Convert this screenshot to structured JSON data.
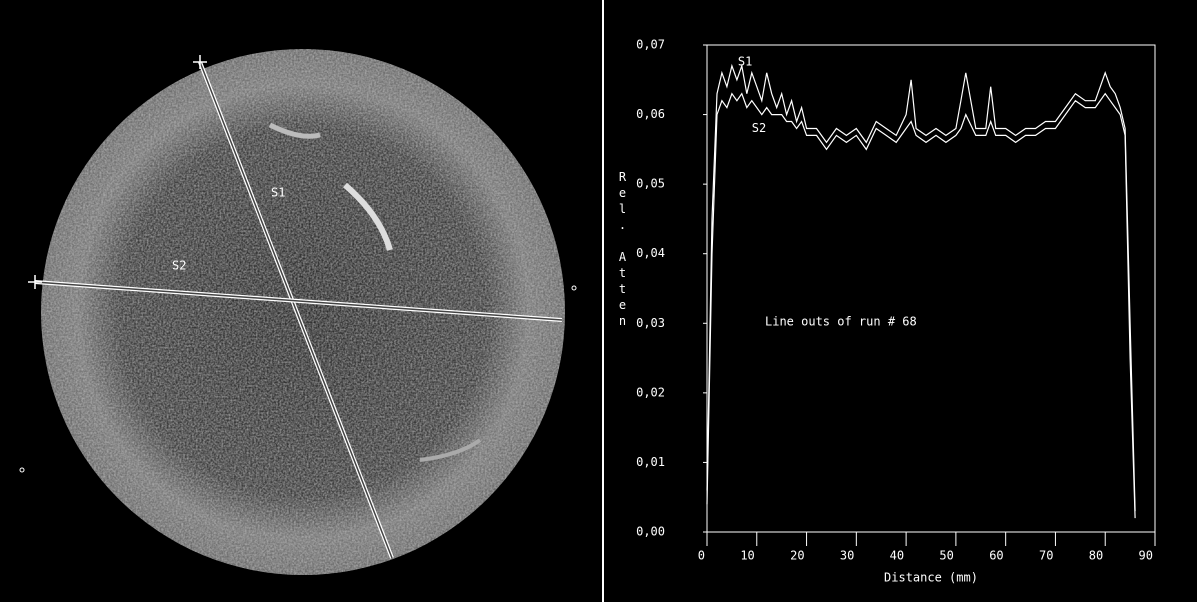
{
  "image": {
    "labels": [
      "S1",
      "S2"
    ]
  },
  "chart_data": {
    "type": "line",
    "annotation": "Line outs of run # 68",
    "xlabel": "Distance (mm)",
    "ylabel": "Rel. Atten",
    "x": [
      0,
      1,
      2,
      3,
      4,
      5,
      6,
      7,
      8,
      9,
      10,
      11,
      12,
      13,
      14,
      15,
      16,
      17,
      18,
      19,
      20,
      22,
      24,
      26,
      28,
      30,
      32,
      34,
      36,
      38,
      40,
      41,
      42,
      44,
      46,
      48,
      50,
      51,
      52,
      54,
      56,
      57,
      58,
      60,
      62,
      64,
      66,
      68,
      70,
      72,
      74,
      76,
      78,
      80,
      81,
      82,
      83,
      84,
      85,
      86
    ],
    "series": [
      {
        "name": "S1",
        "color": "#ffffff",
        "values": [
          0.006,
          0.045,
          0.063,
          0.066,
          0.064,
          0.067,
          0.065,
          0.067,
          0.063,
          0.066,
          0.064,
          0.062,
          0.066,
          0.063,
          0.061,
          0.063,
          0.06,
          0.062,
          0.059,
          0.061,
          0.058,
          0.058,
          0.056,
          0.058,
          0.057,
          0.058,
          0.056,
          0.059,
          0.058,
          0.057,
          0.06,
          0.065,
          0.058,
          0.057,
          0.058,
          0.057,
          0.058,
          0.062,
          0.066,
          0.058,
          0.058,
          0.064,
          0.058,
          0.058,
          0.057,
          0.058,
          0.058,
          0.059,
          0.059,
          0.061,
          0.063,
          0.062,
          0.062,
          0.066,
          0.064,
          0.063,
          0.061,
          0.058,
          0.03,
          0.003
        ]
      },
      {
        "name": "S2",
        "color": "#ffffff",
        "values": [
          0.004,
          0.04,
          0.06,
          0.062,
          0.061,
          0.063,
          0.062,
          0.063,
          0.061,
          0.062,
          0.061,
          0.06,
          0.061,
          0.06,
          0.06,
          0.06,
          0.059,
          0.059,
          0.058,
          0.059,
          0.057,
          0.057,
          0.055,
          0.057,
          0.056,
          0.057,
          0.055,
          0.058,
          0.057,
          0.056,
          0.058,
          0.059,
          0.057,
          0.056,
          0.057,
          0.056,
          0.057,
          0.058,
          0.06,
          0.057,
          0.057,
          0.059,
          0.057,
          0.057,
          0.056,
          0.057,
          0.057,
          0.058,
          0.058,
          0.06,
          0.062,
          0.061,
          0.061,
          0.063,
          0.062,
          0.061,
          0.06,
          0.057,
          0.025,
          0.002
        ]
      }
    ],
    "xlim": [
      0,
      90
    ],
    "ylim": [
      0,
      0.07
    ],
    "xticks": [
      0,
      10,
      20,
      30,
      40,
      50,
      60,
      70,
      80,
      90
    ],
    "yticks": [
      {
        "value": 0,
        "label": "0,00"
      },
      {
        "value": 0.01,
        "label": "0,01"
      },
      {
        "value": 0.02,
        "label": "0,02"
      },
      {
        "value": 0.03,
        "label": "0,03"
      },
      {
        "value": 0.04,
        "label": "0,04"
      },
      {
        "value": 0.05,
        "label": "0,05"
      },
      {
        "value": 0.06,
        "label": "0,06"
      },
      {
        "value": 0.07,
        "label": "0,07"
      }
    ]
  }
}
